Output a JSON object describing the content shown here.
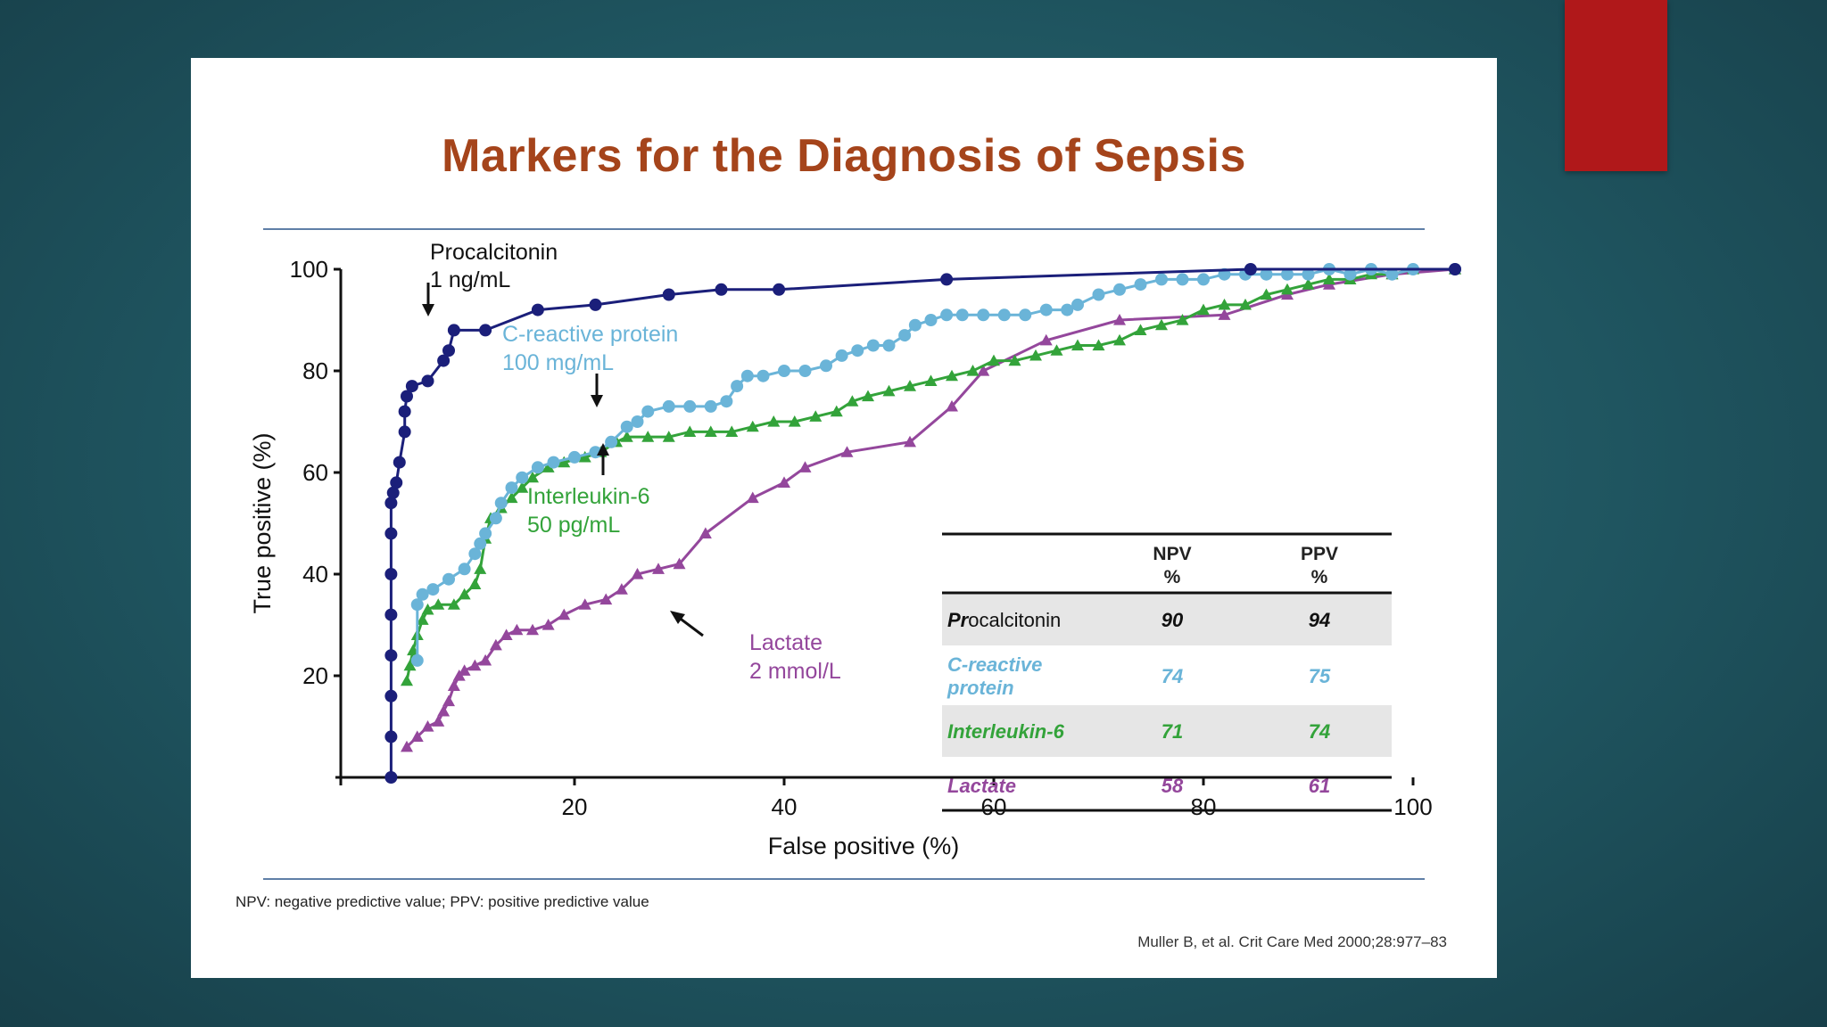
{
  "title": "Markers for the Diagnosis of Sepsis",
  "footnote": "NPV: negative predictive value; PPV: positive predictive value",
  "citation": "Muller B, et al. Crit Care Med 2000;28:977–83",
  "colors": {
    "procalcitonin": "#1b1f7a",
    "crp": "#6ab4d8",
    "il6": "#33a33a",
    "lactate": "#94479c",
    "title": "#a5441b",
    "accent_tab": "#b0181a"
  },
  "annotations": {
    "procalcitonin": [
      "Procalcitonin",
      "1 ng/mL"
    ],
    "crp": [
      "C-reactive protein",
      "100 mg/mL"
    ],
    "il6": [
      "Interleukin-6",
      "50 pg/mL"
    ],
    "lactate": [
      "Lactate",
      "2 mmol/L"
    ]
  },
  "table": {
    "headers": [
      [
        "NPV",
        "%"
      ],
      [
        "PPV",
        "%"
      ]
    ],
    "rows": [
      {
        "name_bold": "Pr",
        "name_rest": "ocalcitonin",
        "npv": "90",
        "ppv": "94",
        "color": "#111111",
        "shaded": true
      },
      {
        "name_lines": [
          "C-reactive",
          "protein"
        ],
        "npv": "74",
        "ppv": "75",
        "color": "#6ab4d8",
        "shaded": false
      },
      {
        "name": "Interleukin-6",
        "npv": "71",
        "ppv": "74",
        "color": "#33a33a",
        "shaded": true
      },
      {
        "name": "Lactate",
        "npv": "58",
        "ppv": "61",
        "color": "#94479c",
        "shaded": false
      }
    ]
  },
  "chart_data": {
    "type": "line",
    "xlabel": "False positive (%)",
    "ylabel": "True positive (%)",
    "xlim": [
      -2,
      100
    ],
    "ylim": [
      0,
      100
    ],
    "x_ticks": [
      20,
      40,
      60,
      80,
      100
    ],
    "y_ticks": [
      20,
      40,
      60,
      80,
      100
    ],
    "grid": false,
    "series": [
      {
        "name": "Procalcitonin",
        "marker": "circle",
        "color": "#1b1f7a",
        "points": [
          [
            2.5,
            0
          ],
          [
            2.5,
            8
          ],
          [
            2.5,
            16
          ],
          [
            2.5,
            24
          ],
          [
            2.5,
            32
          ],
          [
            2.5,
            40
          ],
          [
            2.5,
            48
          ],
          [
            2.5,
            54
          ],
          [
            2.7,
            56
          ],
          [
            3,
            58
          ],
          [
            3.3,
            62
          ],
          [
            3.8,
            68
          ],
          [
            3.8,
            72
          ],
          [
            4,
            75
          ],
          [
            4.5,
            77
          ],
          [
            6,
            78
          ],
          [
            7.5,
            82
          ],
          [
            8,
            84
          ],
          [
            8.5,
            88
          ],
          [
            11.5,
            88
          ],
          [
            16.5,
            92
          ],
          [
            22,
            93
          ],
          [
            29,
            95
          ],
          [
            34,
            96
          ],
          [
            39.5,
            96
          ],
          [
            55.5,
            98
          ],
          [
            84.5,
            100
          ],
          [
            104,
            100
          ]
        ]
      },
      {
        "name": "C-reactive protein",
        "marker": "circle",
        "color": "#6ab4d8",
        "points": [
          [
            5,
            23
          ],
          [
            5,
            34
          ],
          [
            5.5,
            36
          ],
          [
            6.5,
            37
          ],
          [
            8,
            39
          ],
          [
            9.5,
            41
          ],
          [
            10.5,
            44
          ],
          [
            11,
            46
          ],
          [
            11.5,
            48
          ],
          [
            12.5,
            51
          ],
          [
            13,
            54
          ],
          [
            14,
            57
          ],
          [
            15,
            59
          ],
          [
            16.5,
            61
          ],
          [
            18,
            62
          ],
          [
            20,
            63
          ],
          [
            22,
            64
          ],
          [
            23.5,
            66
          ],
          [
            25,
            69
          ],
          [
            26,
            70
          ],
          [
            27,
            72
          ],
          [
            29,
            73
          ],
          [
            31,
            73
          ],
          [
            33,
            73
          ],
          [
            34.5,
            74
          ],
          [
            35.5,
            77
          ],
          [
            36.5,
            79
          ],
          [
            38,
            79
          ],
          [
            40,
            80
          ],
          [
            42,
            80
          ],
          [
            44,
            81
          ],
          [
            45.5,
            83
          ],
          [
            47,
            84
          ],
          [
            48.5,
            85
          ],
          [
            50,
            85
          ],
          [
            51.5,
            87
          ],
          [
            52.5,
            89
          ],
          [
            54,
            90
          ],
          [
            55.5,
            91
          ],
          [
            57,
            91
          ],
          [
            59,
            91
          ],
          [
            61,
            91
          ],
          [
            63,
            91
          ],
          [
            65,
            92
          ],
          [
            67,
            92
          ],
          [
            68,
            93
          ],
          [
            70,
            95
          ],
          [
            72,
            96
          ],
          [
            74,
            97
          ],
          [
            76,
            98
          ],
          [
            78,
            98
          ],
          [
            80,
            98
          ],
          [
            82,
            99
          ],
          [
            84,
            99
          ],
          [
            86,
            99
          ],
          [
            88,
            99
          ],
          [
            90,
            99
          ],
          [
            92,
            100
          ],
          [
            94,
            99
          ],
          [
            96,
            100
          ],
          [
            98,
            99
          ],
          [
            100,
            100
          ],
          [
            104,
            100
          ]
        ]
      },
      {
        "name": "Interleukin-6",
        "marker": "triangle",
        "color": "#33a33a",
        "points": [
          [
            4,
            19
          ],
          [
            4.3,
            22
          ],
          [
            4.6,
            25
          ],
          [
            5,
            28
          ],
          [
            5.5,
            31
          ],
          [
            6,
            33
          ],
          [
            7,
            34
          ],
          [
            8.5,
            34
          ],
          [
            9.5,
            36
          ],
          [
            10.5,
            38
          ],
          [
            11,
            41
          ],
          [
            11.5,
            47
          ],
          [
            12,
            51
          ],
          [
            13,
            53
          ],
          [
            14,
            55
          ],
          [
            15,
            57
          ],
          [
            16,
            59
          ],
          [
            17.5,
            61
          ],
          [
            19,
            62
          ],
          [
            21,
            63
          ],
          [
            22.5,
            64
          ],
          [
            24,
            66
          ],
          [
            25,
            67
          ],
          [
            27,
            67
          ],
          [
            29,
            67
          ],
          [
            31,
            68
          ],
          [
            33,
            68
          ],
          [
            35,
            68
          ],
          [
            37,
            69
          ],
          [
            39,
            70
          ],
          [
            41,
            70
          ],
          [
            43,
            71
          ],
          [
            45,
            72
          ],
          [
            46.5,
            74
          ],
          [
            48,
            75
          ],
          [
            50,
            76
          ],
          [
            52,
            77
          ],
          [
            54,
            78
          ],
          [
            56,
            79
          ],
          [
            58,
            80
          ],
          [
            60,
            82
          ],
          [
            62,
            82
          ],
          [
            64,
            83
          ],
          [
            66,
            84
          ],
          [
            68,
            85
          ],
          [
            70,
            85
          ],
          [
            72,
            86
          ],
          [
            74,
            88
          ],
          [
            76,
            89
          ],
          [
            78,
            90
          ],
          [
            80,
            92
          ],
          [
            82,
            93
          ],
          [
            84,
            93
          ],
          [
            86,
            95
          ],
          [
            88,
            96
          ],
          [
            90,
            97
          ],
          [
            92,
            98
          ],
          [
            94,
            98
          ],
          [
            96,
            99
          ],
          [
            98,
            99
          ],
          [
            100,
            100
          ],
          [
            104,
            100
          ]
        ]
      },
      {
        "name": "Lactate",
        "marker": "triangle",
        "color": "#94479c",
        "points": [
          [
            4,
            6
          ],
          [
            5,
            8
          ],
          [
            6,
            10
          ],
          [
            7,
            11
          ],
          [
            7.5,
            13
          ],
          [
            8,
            15
          ],
          [
            8.5,
            18
          ],
          [
            9,
            20
          ],
          [
            9.5,
            21
          ],
          [
            10.5,
            22
          ],
          [
            11.5,
            23
          ],
          [
            12.5,
            26
          ],
          [
            13.5,
            28
          ],
          [
            14.5,
            29
          ],
          [
            16,
            29
          ],
          [
            17.5,
            30
          ],
          [
            19,
            32
          ],
          [
            21,
            34
          ],
          [
            23,
            35
          ],
          [
            24.5,
            37
          ],
          [
            26,
            40
          ],
          [
            28,
            41
          ],
          [
            30,
            42
          ],
          [
            32.5,
            48
          ],
          [
            37,
            55
          ],
          [
            40,
            58
          ],
          [
            42,
            61
          ],
          [
            46,
            64
          ],
          [
            52,
            66
          ],
          [
            56,
            73
          ],
          [
            59,
            80
          ],
          [
            65,
            86
          ],
          [
            72,
            90
          ],
          [
            82,
            91
          ],
          [
            88,
            95
          ],
          [
            92,
            97
          ],
          [
            98,
            99
          ],
          [
            104,
            100
          ]
        ]
      }
    ]
  }
}
